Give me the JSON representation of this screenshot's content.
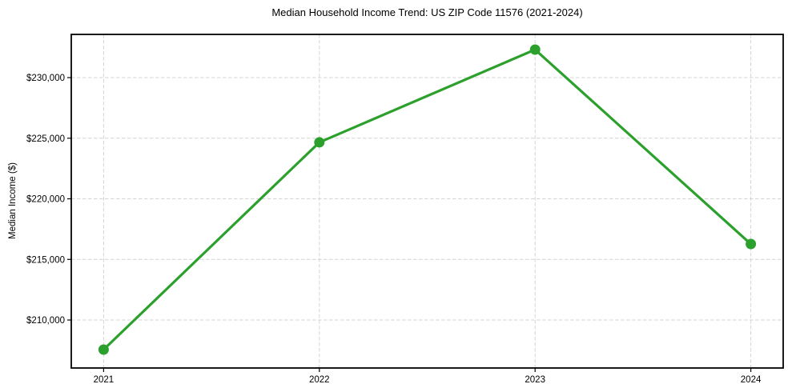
{
  "chart": {
    "title": "Median Household Income Trend: US ZIP Code 11576 (2021-2024)",
    "ylabel": "Median Income ($)"
  },
  "chart_data": {
    "type": "line",
    "title": "Median Household Income Trend: US ZIP Code 11576 (2021-2024)",
    "xlabel": "",
    "ylabel": "Median Income ($)",
    "x": [
      2021,
      2022,
      2023,
      2024
    ],
    "series": [
      {
        "name": "Median Household Income",
        "values": [
          207560,
          224660,
          232310,
          216270
        ]
      }
    ],
    "xlim": [
      2020.85,
      2024.15
    ],
    "ylim": [
      206040,
      233565
    ],
    "xticks": [
      2021,
      2022,
      2023,
      2024
    ],
    "xtick_labels": [
      "2021",
      "2022",
      "2023",
      "2024"
    ],
    "yticks": [
      210000,
      215000,
      220000,
      225000,
      230000
    ],
    "ytick_labels": [
      "$210,000",
      "$215,000",
      "$220,000",
      "$225,000",
      "$230,000"
    ],
    "grid": true,
    "legend": "none",
    "line_color": "#2ca02c",
    "marker": "circle",
    "marker_radius": 6.5,
    "line_width": 3.2,
    "grid_color": "#d4d4d4",
    "spine_color": "#000000"
  }
}
